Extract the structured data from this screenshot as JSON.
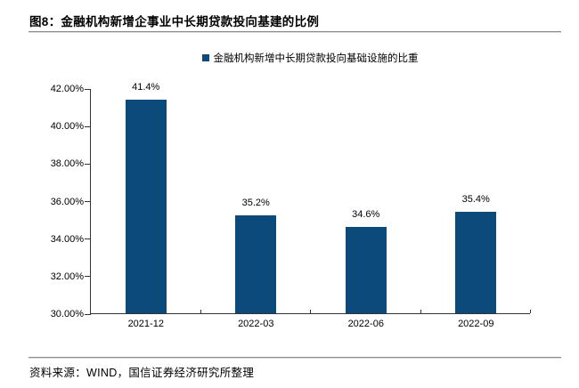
{
  "figure": {
    "title": "图8：金融机构新增企事业中长期贷款投向基建的比例"
  },
  "source": {
    "text": "资料来源：WIND，国信证券经济研究所整理"
  },
  "colors": {
    "bar": "#0C4A7B",
    "axis": "#333333",
    "divider": "#8C8C8C",
    "text": "#000000"
  },
  "chart_data": {
    "type": "bar",
    "title": "图8：金融机构新增企事业中长期贷款投向基建的比例",
    "legend": "金融机构新增中长期贷款投向基础设施的比重",
    "legend_position": "top-center",
    "categories": [
      "2021-12",
      "2022-03",
      "2022-06",
      "2022-09"
    ],
    "values": [
      41.4,
      35.2,
      34.6,
      35.4
    ],
    "value_labels": [
      "41.4%",
      "35.2%",
      "34.6%",
      "35.4%"
    ],
    "xlabel": "",
    "ylabel": "",
    "ylim": [
      30,
      42
    ],
    "yticks": [
      {
        "value": 30,
        "label": "30.00%"
      },
      {
        "value": 32,
        "label": "32.00%"
      },
      {
        "value": 34,
        "label": "34.00%"
      },
      {
        "value": 36,
        "label": "36.00%"
      },
      {
        "value": 38,
        "label": "38.00%"
      },
      {
        "value": 40,
        "label": "40.00%"
      },
      {
        "value": 42,
        "label": "42.00%"
      }
    ],
    "grid": false,
    "bar_color": "#0C4A7B"
  }
}
